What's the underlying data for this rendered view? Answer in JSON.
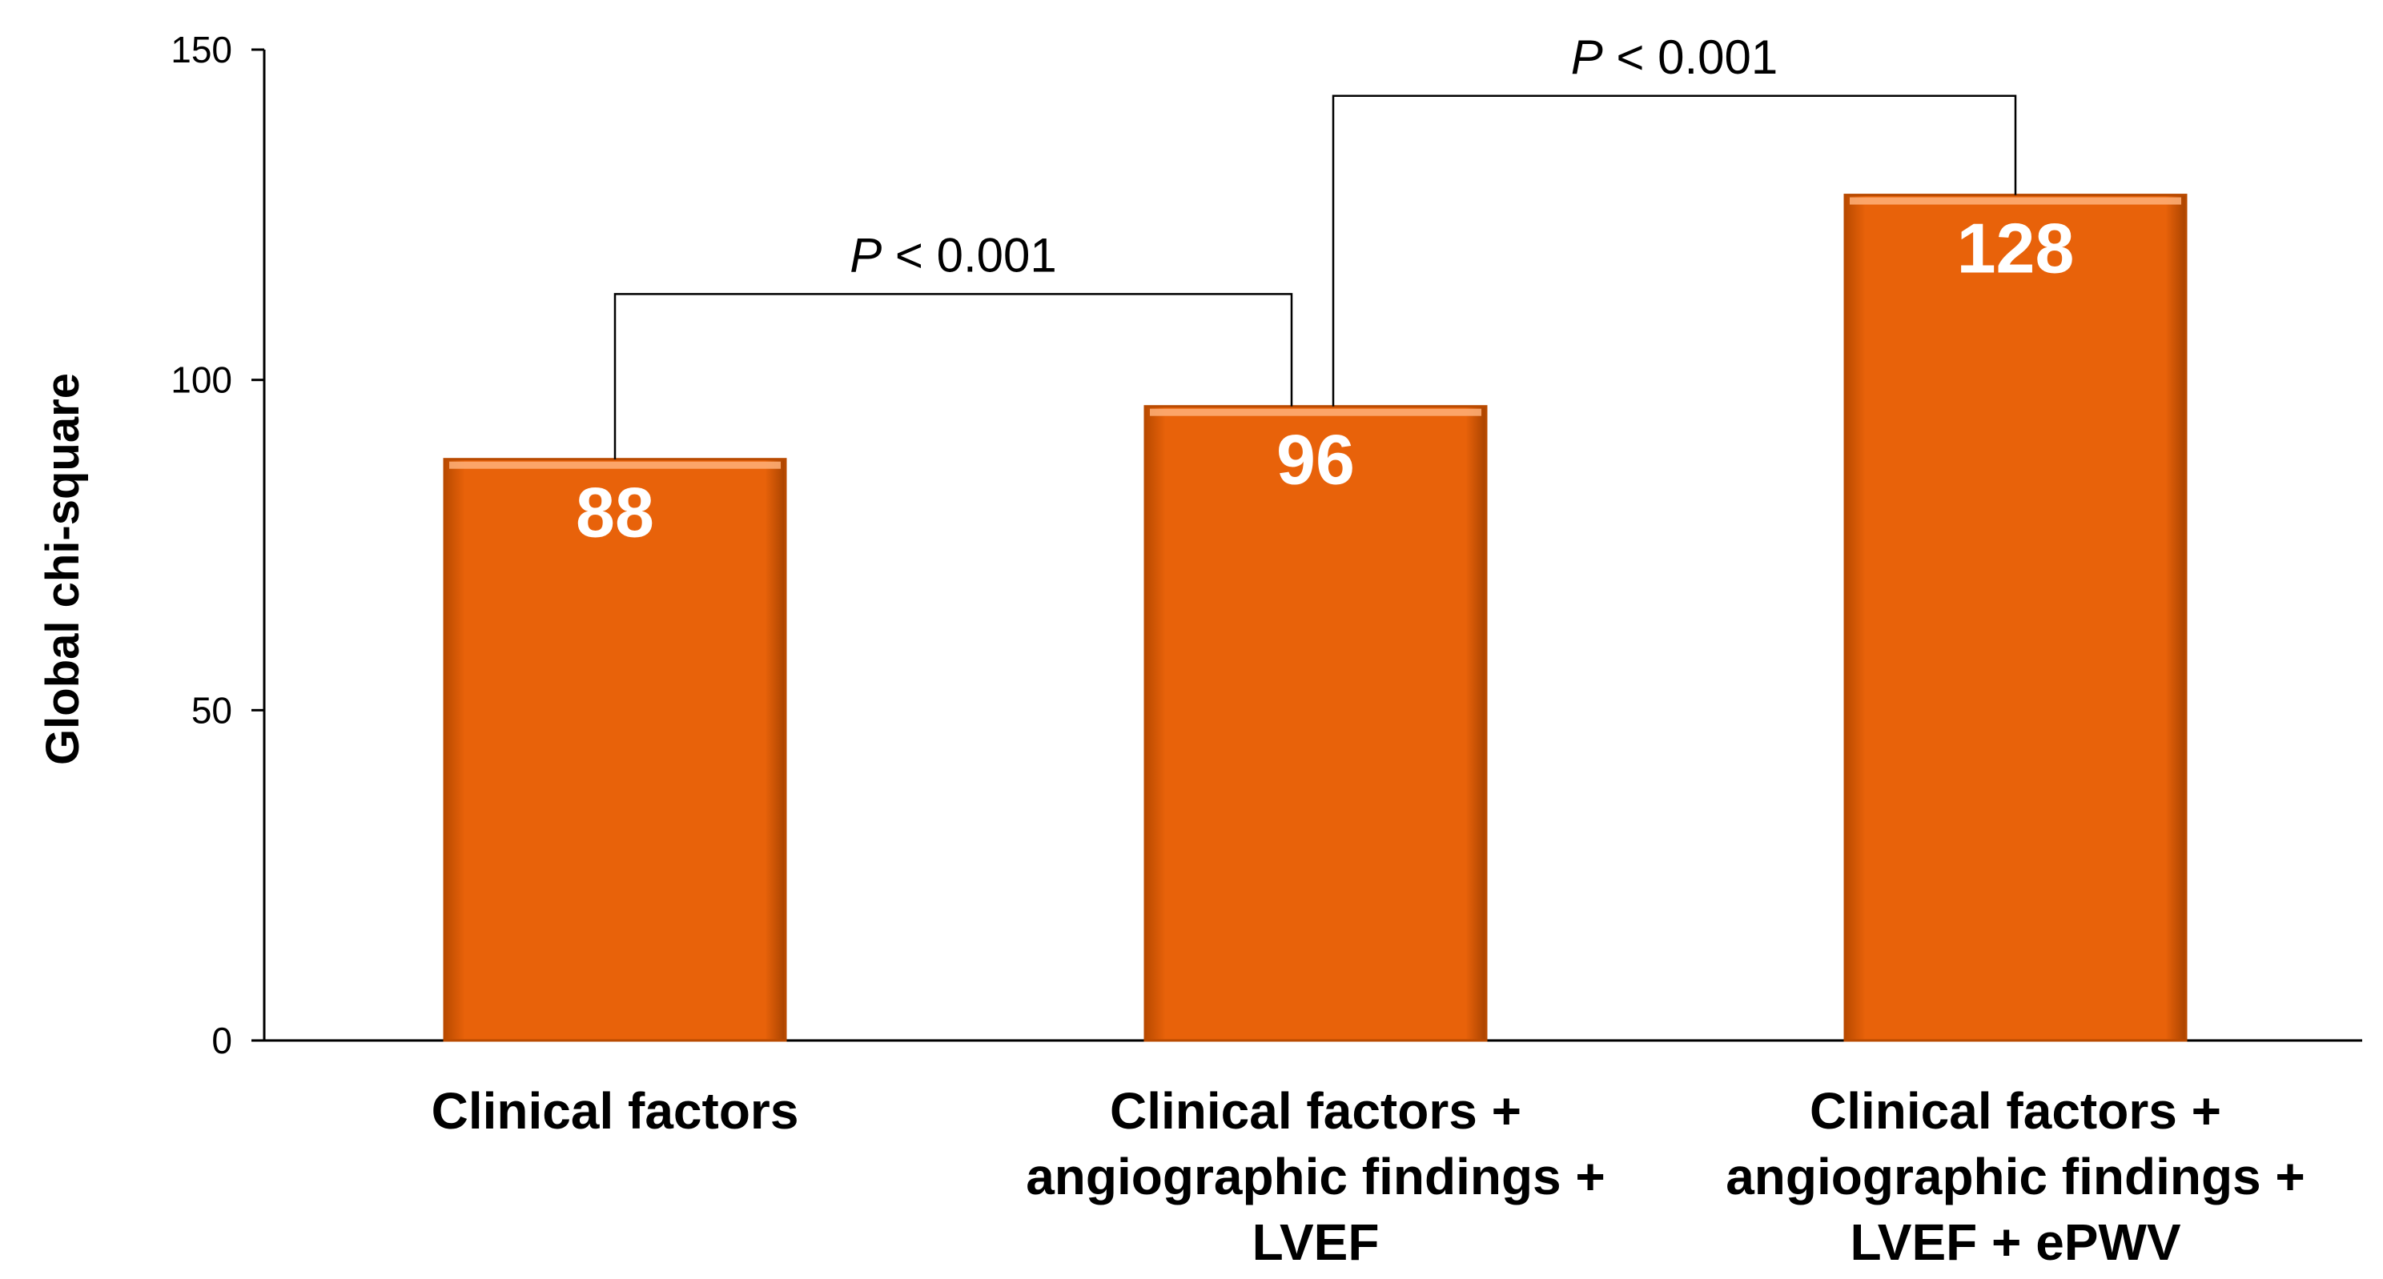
{
  "chart_data": {
    "type": "bar",
    "categories": [
      [
        "Clinical factors"
      ],
      [
        "Clinical factors +",
        "angiographic findings +",
        "LVEF"
      ],
      [
        "Clinical factors +",
        "angiographic findings +",
        "LVEF + ePWV"
      ]
    ],
    "values": [
      88,
      96,
      128
    ],
    "data_labels": [
      "88",
      "96",
      "128"
    ],
    "title": "",
    "xlabel": "",
    "ylabel": "Global chi-square",
    "ylim": [
      0,
      150
    ],
    "yticks": [
      0,
      50,
      100,
      150
    ],
    "grid": false,
    "legend": "none",
    "bar_color": "#E8620A",
    "bar_edge_color": "#B94A00",
    "bar_highlight_color": "#FFB27A",
    "data_label_color": "#FFFFFF",
    "comparisons": [
      {
        "from": 0,
        "to": 1,
        "y": 113,
        "p_symbol": "P",
        "p_text": " < 0.001"
      },
      {
        "from": 1,
        "to": 2,
        "y": 143,
        "p_symbol": "P",
        "p_text": " < 0.001"
      }
    ]
  }
}
